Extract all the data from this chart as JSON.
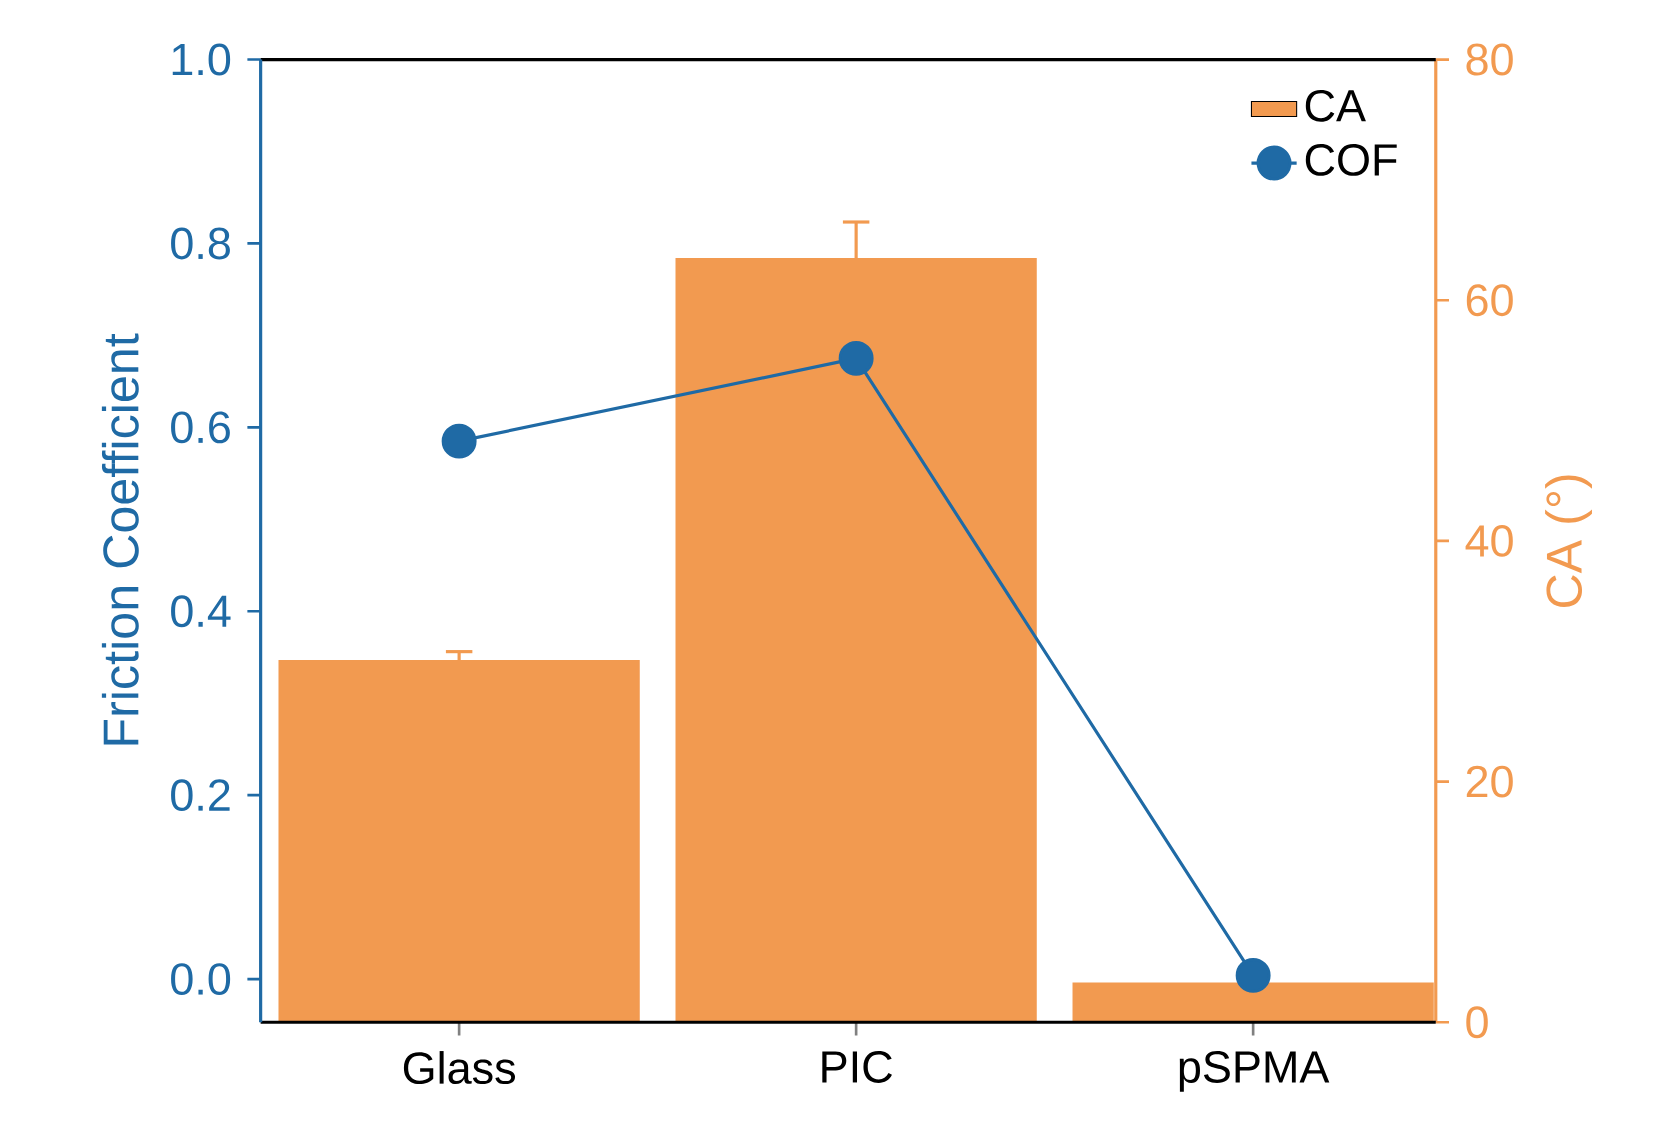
{
  "chart_data": {
    "type": "bar",
    "categories": [
      "Glass",
      "PIC",
      "pSPMA"
    ],
    "ylabel": "Friction Coefficient",
    "y2label": "CA (°)",
    "ylim": [
      -0.047,
      1.0
    ],
    "yticks": [
      {
        "value": 0,
        "label": "0.0"
      },
      {
        "value": 0.2,
        "label": "0.2"
      },
      {
        "value": 0.4,
        "label": "0.4"
      },
      {
        "value": 0.6,
        "label": "0.6"
      },
      {
        "value": 0.8,
        "label": "0.8"
      },
      {
        "value": 1.0,
        "label": "1.0"
      }
    ],
    "y2lim": [
      0,
      80
    ],
    "y2ticks": [
      0,
      20,
      40,
      60,
      80
    ],
    "legend": "top right",
    "series": [
      {
        "name": "CA",
        "axis": "y2",
        "color": "#f29a50",
        "values": [
          30.1,
          63.5,
          3.3
        ],
        "errors": [
          0.7,
          3,
          null
        ]
      },
      {
        "name": "COF",
        "type": "line",
        "axis": "y",
        "color": "#1f6aa5",
        "values": [
          0.585,
          0.675,
          0.004
        ],
        "marker": "circle"
      }
    ]
  }
}
